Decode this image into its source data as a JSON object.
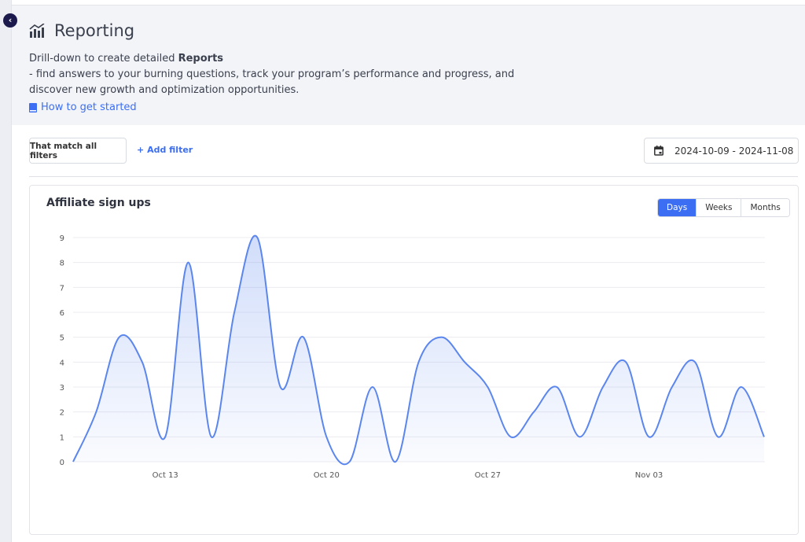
{
  "header": {
    "title": "Reporting",
    "desc_pre": "Drill-down to create detailed ",
    "desc_bold": "Reports",
    "desc_post": " - find answers to your burning questions, track your program’s performance and progress, and discover new growth and optimization opportunities.",
    "howto": "How to get started"
  },
  "filters": {
    "match": "That match all filters",
    "add": "Add filter",
    "add_icon": "+",
    "date_range": "2024-10-09 - 2024-11-08"
  },
  "card": {
    "title": "Affiliate sign ups",
    "periods": [
      "Days",
      "Weeks",
      "Months"
    ],
    "active_period": "Days"
  },
  "colors": {
    "accent": "#3b6ef2",
    "line": "#5b86ee"
  },
  "chart_data": {
    "type": "area",
    "title": "Affiliate sign ups",
    "x": [
      "2024-10-09",
      "2024-10-10",
      "2024-10-11",
      "2024-10-12",
      "2024-10-13",
      "2024-10-14",
      "2024-10-15",
      "2024-10-16",
      "2024-10-17",
      "2024-10-18",
      "2024-10-19",
      "2024-10-20",
      "2024-10-21",
      "2024-10-22",
      "2024-10-23",
      "2024-10-24",
      "2024-10-25",
      "2024-10-26",
      "2024-10-27",
      "2024-10-28",
      "2024-10-29",
      "2024-10-30",
      "2024-10-31",
      "2024-11-01",
      "2024-11-02",
      "2024-11-03",
      "2024-11-04",
      "2024-11-05",
      "2024-11-06",
      "2024-11-07",
      "2024-11-08"
    ],
    "values": [
      0,
      2,
      5,
      4,
      1,
      8,
      1,
      6,
      9,
      3,
      5,
      1,
      0,
      3,
      0,
      4,
      5,
      4,
      3,
      1,
      2,
      3,
      1,
      3,
      4,
      1,
      3,
      4,
      1,
      3,
      1
    ],
    "x_ticks": [
      {
        "index": 4,
        "label": "Oct 13"
      },
      {
        "index": 11,
        "label": "Oct 20"
      },
      {
        "index": 18,
        "label": "Oct 27"
      },
      {
        "index": 25,
        "label": "Nov 03"
      }
    ],
    "y_ticks": [
      "0",
      "1",
      "2",
      "3",
      "4",
      "5",
      "6",
      "7",
      "8",
      "9"
    ],
    "ylim": [
      0,
      9
    ],
    "grid": true,
    "legend": "none"
  }
}
